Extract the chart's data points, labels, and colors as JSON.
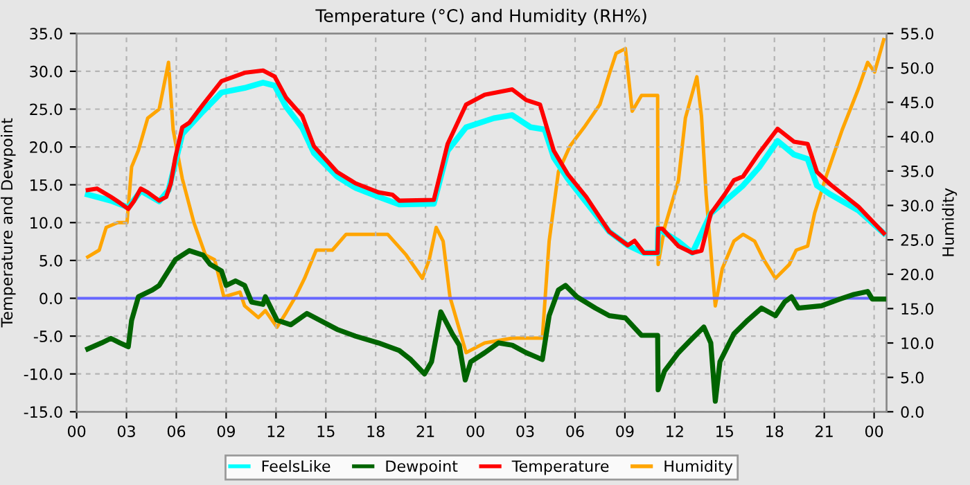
{
  "chart_data": {
    "type": "line",
    "title": "Temperature (°C) and Humidity (RH%)",
    "ylabel": "Temperature and Dewpoint",
    "y2label": "Humidity",
    "xlim": [
      0,
      48.75
    ],
    "ylim": [
      -15,
      35
    ],
    "y2lim": [
      0,
      55
    ],
    "xticks": [
      {
        "value": 0,
        "label": "00"
      },
      {
        "value": 3,
        "label": "03"
      },
      {
        "value": 6,
        "label": "06"
      },
      {
        "value": 9,
        "label": "09"
      },
      {
        "value": 12,
        "label": "12"
      },
      {
        "value": 15,
        "label": "15"
      },
      {
        "value": 18,
        "label": "18"
      },
      {
        "value": 21,
        "label": "21"
      },
      {
        "value": 24,
        "label": "00"
      },
      {
        "value": 27,
        "label": "03"
      },
      {
        "value": 30,
        "label": "06"
      },
      {
        "value": 33,
        "label": "09"
      },
      {
        "value": 36,
        "label": "12"
      },
      {
        "value": 39,
        "label": "15"
      },
      {
        "value": 42,
        "label": "18"
      },
      {
        "value": 45,
        "label": "21"
      },
      {
        "value": 48,
        "label": "00"
      }
    ],
    "yticks": [
      {
        "value": -15,
        "label": "-15.0"
      },
      {
        "value": -10,
        "label": "-10.0"
      },
      {
        "value": -5,
        "label": "-5.0"
      },
      {
        "value": 0,
        "label": "0.0"
      },
      {
        "value": 5,
        "label": "5.0"
      },
      {
        "value": 10,
        "label": "10.0"
      },
      {
        "value": 15,
        "label": "15.0"
      },
      {
        "value": 20,
        "label": "20.0"
      },
      {
        "value": 25,
        "label": "25.0"
      },
      {
        "value": 30,
        "label": "30.0"
      },
      {
        "value": 35,
        "label": "35.0"
      }
    ],
    "y2ticks": [
      {
        "value": 0,
        "label": "0.0"
      },
      {
        "value": 5,
        "label": "5.0"
      },
      {
        "value": 10,
        "label": "10.0"
      },
      {
        "value": 15,
        "label": "15.0"
      },
      {
        "value": 20,
        "label": "20.0"
      },
      {
        "value": 25,
        "label": "25.0"
      },
      {
        "value": 30,
        "label": "30.0"
      },
      {
        "value": 35,
        "label": "35.0"
      },
      {
        "value": 40,
        "label": "40.0"
      },
      {
        "value": 45,
        "label": "45.0"
      },
      {
        "value": 50,
        "label": "50.0"
      },
      {
        "value": 55,
        "label": "55.0"
      }
    ],
    "grid": true,
    "legend": "bottom",
    "line_style": "solid",
    "marker": "none",
    "ref_lines": [
      {
        "axis": "y",
        "value": 0,
        "color": "#6666ff"
      }
    ],
    "series": [
      {
        "name": "FeelsLike",
        "color": "#00ffff",
        "x": [
          0.67,
          2.06,
          3.11,
          3.86,
          4.97,
          5.53,
          5.94,
          6.36,
          7.61,
          8.72,
          10.11,
          11.22,
          11.92,
          12.61,
          13.58,
          14.28,
          15.67,
          16.78,
          18.17,
          19.42,
          21.5,
          22.33,
          23.44,
          25.11,
          26.22,
          27.33,
          28.17,
          28.72,
          29.56,
          30.67,
          32.06,
          33.17,
          34.14,
          34.97,
          35.0,
          36.22,
          37.06,
          38.17,
          40.11,
          41.08,
          42.19,
          43.17,
          44.0,
          44.56,
          45.39,
          47.06,
          48.58
        ],
        "values": [
          13.7,
          12.9,
          12.0,
          14.2,
          12.8,
          14.3,
          17.9,
          21.7,
          24.7,
          27.2,
          27.8,
          28.5,
          28.1,
          25.3,
          22.5,
          19.2,
          16.1,
          14.6,
          13.4,
          12.4,
          12.5,
          19.5,
          22.6,
          23.8,
          24.2,
          22.6,
          22.3,
          18.6,
          15.8,
          12.7,
          8.8,
          7.0,
          6.0,
          6.0,
          9.2,
          7.5,
          6.0,
          11.2,
          14.9,
          17.3,
          20.8,
          19.0,
          18.4,
          14.9,
          13.7,
          11.6,
          8.6
        ]
      },
      {
        "name": "Dewpoint",
        "color": "#006400",
        "x": [
          0.67,
          1.5,
          2.06,
          2.61,
          3.11,
          3.31,
          3.72,
          4.56,
          4.97,
          5.94,
          6.78,
          7.61,
          8.03,
          8.72,
          9.0,
          9.56,
          10.11,
          10.53,
          11.22,
          11.36,
          12.06,
          12.89,
          13.86,
          15.67,
          16.78,
          18.17,
          19.42,
          20.11,
          20.94,
          21.36,
          21.92,
          22.61,
          23.03,
          23.39,
          23.72,
          24.56,
          25.39,
          26.22,
          27.06,
          28.03,
          28.44,
          29.0,
          29.42,
          30.11,
          31.22,
          32.06,
          33.03,
          34.0,
          34.97,
          35.0,
          35.39,
          36.22,
          37.06,
          37.75,
          38.17,
          38.44,
          38.72,
          39.56,
          40.39,
          41.22,
          42.06,
          42.61,
          43.03,
          43.44,
          44.83,
          45.94,
          46.78,
          47.61,
          47.89,
          48.58
        ],
        "values": [
          -6.7,
          -5.9,
          -5.3,
          -5.9,
          -6.4,
          -2.9,
          0.2,
          1.1,
          1.7,
          5.1,
          6.3,
          5.7,
          4.5,
          3.6,
          1.7,
          2.3,
          1.7,
          -0.5,
          -0.8,
          0.2,
          -2.9,
          -3.5,
          -2.0,
          -4.1,
          -5.0,
          -5.9,
          -6.9,
          -8.1,
          -10.0,
          -8.4,
          -1.8,
          -4.7,
          -6.2,
          -10.8,
          -8.4,
          -7.2,
          -5.9,
          -6.2,
          -7.2,
          -8.1,
          -2.3,
          1.1,
          1.7,
          0.2,
          -1.3,
          -2.3,
          -2.6,
          -4.9,
          -4.9,
          -12.1,
          -9.6,
          -7.2,
          -5.3,
          -3.8,
          -5.9,
          -13.6,
          -8.4,
          -4.7,
          -2.9,
          -1.3,
          -2.3,
          -0.5,
          0.2,
          -1.3,
          -1.0,
          -0.1,
          0.5,
          0.9,
          -0.1,
          -0.1
        ]
      },
      {
        "name": "Temperature",
        "color": "#ff0000",
        "x": [
          0.67,
          1.22,
          2.06,
          2.61,
          3.11,
          3.44,
          3.86,
          4.28,
          4.97,
          5.39,
          5.67,
          5.94,
          6.36,
          6.78,
          7.61,
          8.72,
          10.11,
          11.22,
          11.92,
          12.61,
          13.58,
          14.28,
          15.67,
          16.78,
          18.17,
          19.0,
          19.42,
          21.5,
          21.78,
          22.33,
          23.44,
          24.56,
          26.22,
          27.06,
          27.89,
          28.72,
          29.56,
          30.67,
          32.06,
          33.17,
          33.58,
          34.14,
          34.97,
          35.0,
          35.25,
          36.22,
          37.06,
          37.61,
          38.17,
          39.0,
          39.56,
          40.11,
          41.08,
          42.19,
          43.17,
          44.0,
          44.56,
          45.39,
          47.06,
          48.58
        ],
        "values": [
          14.3,
          14.5,
          13.4,
          12.6,
          11.8,
          12.8,
          14.5,
          14.0,
          12.9,
          13.4,
          15.2,
          18.6,
          22.6,
          23.2,
          25.6,
          28.7,
          29.8,
          30.1,
          29.3,
          26.5,
          24.1,
          20.1,
          16.7,
          15.2,
          14.0,
          13.7,
          12.9,
          13.0,
          15.5,
          20.4,
          25.6,
          26.9,
          27.6,
          26.2,
          25.6,
          19.5,
          16.4,
          13.4,
          8.8,
          7.0,
          7.6,
          6.0,
          6.0,
          9.2,
          9.2,
          6.9,
          6.0,
          6.3,
          11.2,
          13.7,
          15.6,
          16.1,
          19.2,
          22.4,
          20.7,
          20.4,
          16.7,
          15.0,
          12.1,
          8.6
        ]
      },
      {
        "name": "Humidity",
        "color": "#ffa500",
        "axis": "y2",
        "x": [
          0.67,
          1.36,
          1.78,
          2.47,
          3.03,
          3.31,
          3.72,
          4.28,
          4.97,
          5.53,
          5.81,
          6.36,
          7.06,
          7.75,
          8.31,
          8.86,
          9.83,
          10.11,
          10.94,
          11.36,
          12.06,
          12.61,
          13.17,
          13.72,
          14.42,
          15.39,
          16.22,
          18.72,
          19.83,
          20.81,
          21.22,
          21.64,
          22.06,
          22.47,
          23.44,
          24.56,
          26.22,
          28.03,
          28.44,
          29.0,
          29.69,
          30.53,
          31.5,
          32.06,
          32.47,
          33.03,
          33.44,
          34.0,
          34.97,
          35.0,
          35.39,
          36.22,
          36.64,
          37.33,
          37.61,
          37.89,
          38.44,
          38.86,
          39.56,
          40.11,
          40.81,
          41.36,
          42.06,
          42.89,
          43.31,
          44.0,
          44.42,
          45.11,
          46.08,
          47.06,
          47.61,
          48.03,
          48.58
        ],
        "values": [
          22.5,
          23.5,
          26.8,
          27.5,
          27.5,
          35.6,
          38.0,
          42.7,
          44.0,
          50.8,
          41.0,
          33.9,
          27.5,
          22.8,
          22.1,
          16.7,
          17.4,
          15.4,
          13.7,
          14.7,
          12.3,
          14.4,
          16.7,
          19.4,
          23.5,
          23.5,
          25.8,
          25.8,
          22.8,
          19.4,
          22.1,
          26.8,
          24.8,
          16.7,
          8.6,
          10.0,
          10.7,
          10.7,
          24.8,
          34.9,
          38.6,
          41.3,
          44.7,
          49.1,
          52.1,
          52.8,
          43.7,
          46.0,
          46.0,
          21.4,
          26.8,
          33.6,
          42.7,
          48.7,
          43.0,
          31.5,
          15.4,
          20.8,
          24.8,
          25.8,
          24.8,
          22.1,
          19.4,
          21.4,
          23.5,
          24.1,
          28.9,
          34.2,
          41.0,
          47.0,
          50.8,
          49.4,
          54.1
        ]
      }
    ]
  }
}
